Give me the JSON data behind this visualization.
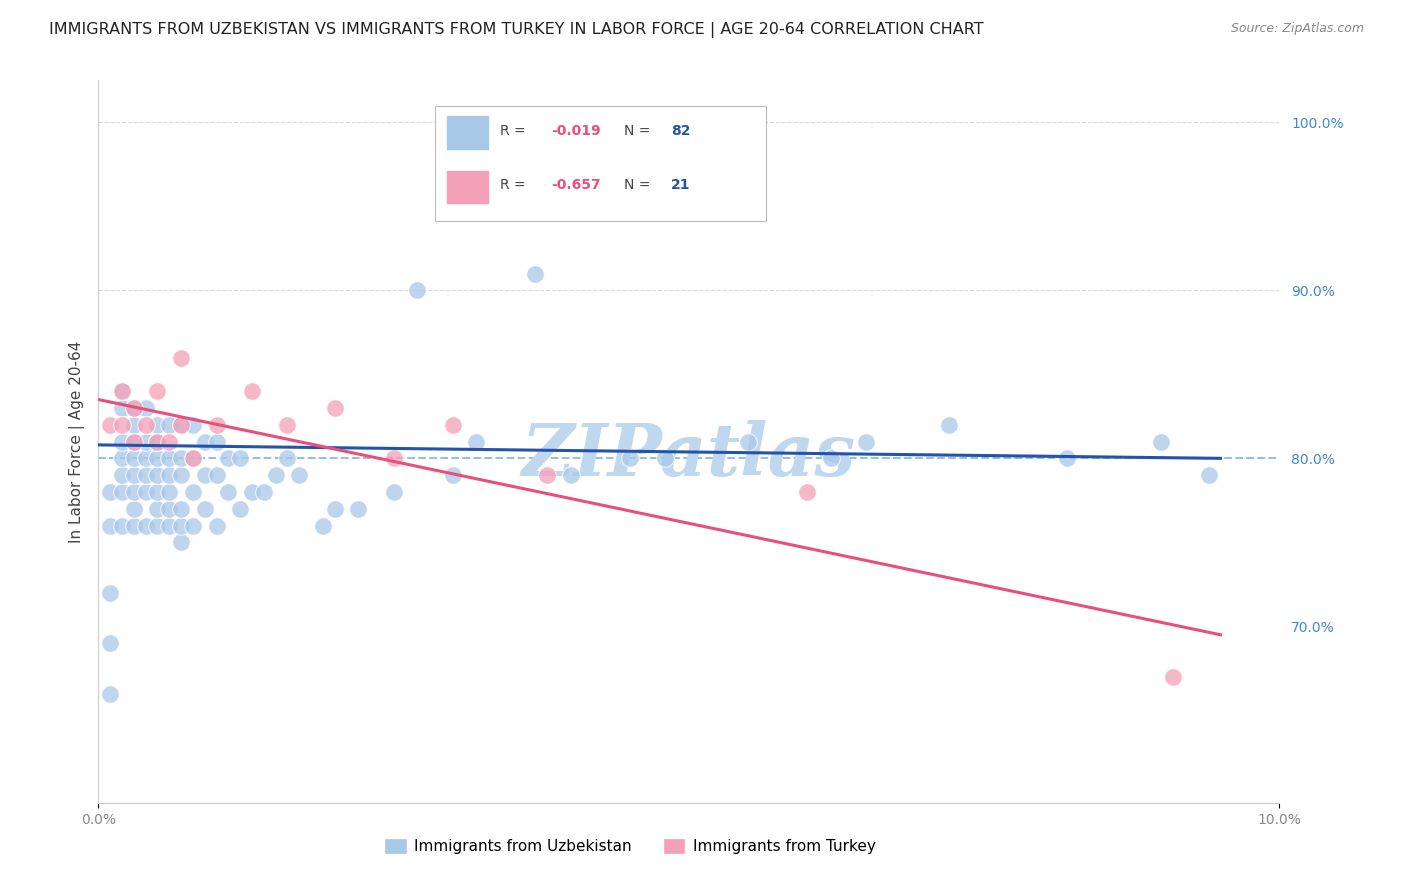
{
  "title": "IMMIGRANTS FROM UZBEKISTAN VS IMMIGRANTS FROM TURKEY IN LABOR FORCE | AGE 20-64 CORRELATION CHART",
  "source": "Source: ZipAtlas.com",
  "ylabel": "In Labor Force | Age 20-64",
  "x_min": 0.0,
  "x_max": 0.1,
  "y_min": 0.595,
  "y_max": 1.025,
  "uzbekistan_color": "#a8c8e8",
  "turkey_color": "#f4a0b8",
  "uzbekistan_line_color": "#2255aa",
  "turkey_line_color": "#e8507a",
  "dashed_line_y": 0.8,
  "dashed_line_color": "#88bbdd",
  "background_color": "#ffffff",
  "grid_color": "#cccccc",
  "right_ytick_color": "#4488cc",
  "tick_color": "#888888",
  "title_fontsize": 11.5,
  "axis_label_fontsize": 11,
  "tick_fontsize": 10,
  "watermark": "ZIPatlas",
  "watermark_color": "#c0d8ee",
  "watermark_fontsize": 52,
  "uz_line_x0": 0.0,
  "uz_line_x1": 0.095,
  "uz_line_y0": 0.808,
  "uz_line_y1": 0.8,
  "tr_line_x0": 0.0,
  "tr_line_x1": 0.095,
  "tr_line_y0": 0.835,
  "tr_line_y1": 0.695,
  "uzbekistan_x": [
    0.001,
    0.001,
    0.001,
    0.001,
    0.001,
    0.002,
    0.002,
    0.002,
    0.002,
    0.002,
    0.002,
    0.002,
    0.003,
    0.003,
    0.003,
    0.003,
    0.003,
    0.003,
    0.003,
    0.003,
    0.004,
    0.004,
    0.004,
    0.004,
    0.004,
    0.004,
    0.005,
    0.005,
    0.005,
    0.005,
    0.005,
    0.005,
    0.005,
    0.006,
    0.006,
    0.006,
    0.006,
    0.006,
    0.006,
    0.007,
    0.007,
    0.007,
    0.007,
    0.007,
    0.007,
    0.008,
    0.008,
    0.008,
    0.008,
    0.009,
    0.009,
    0.009,
    0.01,
    0.01,
    0.01,
    0.011,
    0.011,
    0.012,
    0.012,
    0.013,
    0.014,
    0.015,
    0.016,
    0.017,
    0.019,
    0.02,
    0.022,
    0.025,
    0.027,
    0.03,
    0.032,
    0.037,
    0.04,
    0.045,
    0.048,
    0.055,
    0.062,
    0.065,
    0.072,
    0.082,
    0.09,
    0.094
  ],
  "uzbekistan_y": [
    0.66,
    0.69,
    0.72,
    0.76,
    0.78,
    0.76,
    0.78,
    0.79,
    0.8,
    0.81,
    0.83,
    0.84,
    0.76,
    0.77,
    0.78,
    0.79,
    0.8,
    0.81,
    0.82,
    0.83,
    0.76,
    0.78,
    0.79,
    0.8,
    0.81,
    0.83,
    0.76,
    0.77,
    0.78,
    0.79,
    0.8,
    0.81,
    0.82,
    0.76,
    0.77,
    0.78,
    0.79,
    0.8,
    0.82,
    0.75,
    0.76,
    0.77,
    0.79,
    0.8,
    0.82,
    0.76,
    0.78,
    0.8,
    0.82,
    0.77,
    0.79,
    0.81,
    0.76,
    0.79,
    0.81,
    0.78,
    0.8,
    0.77,
    0.8,
    0.78,
    0.78,
    0.79,
    0.8,
    0.79,
    0.76,
    0.77,
    0.77,
    0.78,
    0.9,
    0.79,
    0.81,
    0.91,
    0.79,
    0.8,
    0.8,
    0.81,
    0.8,
    0.81,
    0.82,
    0.8,
    0.81,
    0.79
  ],
  "turkey_x": [
    0.001,
    0.002,
    0.002,
    0.003,
    0.003,
    0.004,
    0.005,
    0.005,
    0.006,
    0.007,
    0.007,
    0.008,
    0.01,
    0.013,
    0.016,
    0.02,
    0.025,
    0.03,
    0.038,
    0.06,
    0.091
  ],
  "turkey_y": [
    0.82,
    0.82,
    0.84,
    0.81,
    0.83,
    0.82,
    0.81,
    0.84,
    0.81,
    0.82,
    0.86,
    0.8,
    0.82,
    0.84,
    0.82,
    0.83,
    0.8,
    0.82,
    0.79,
    0.78,
    0.67
  ],
  "legend_box_color": "#ffffff",
  "legend_box_edge": "#cccccc"
}
